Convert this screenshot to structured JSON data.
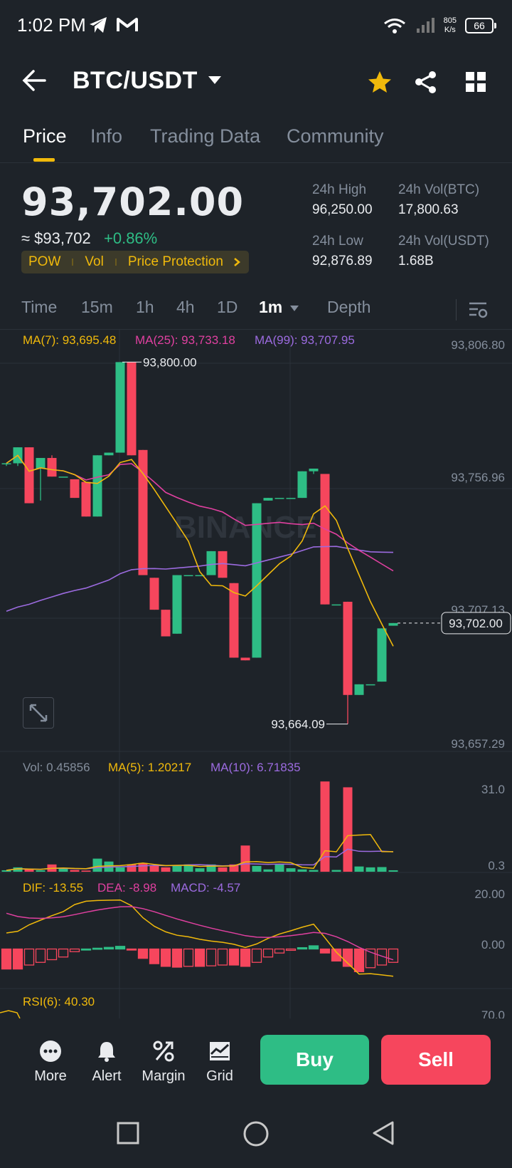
{
  "status": {
    "time": "1:02 PM",
    "net_speed_value": "805",
    "net_speed_unit": "K/s",
    "battery": "66"
  },
  "header": {
    "pair": "BTC/USDT",
    "back_icon": "arrow-left-icon",
    "dropdown_icon": "caret-down-icon",
    "favorite_icon": "star-icon",
    "share_icon": "share-icon",
    "more_icon": "grid-icon",
    "favorite_color": "#f0b90b"
  },
  "tabs": [
    {
      "label": "Price",
      "active": true
    },
    {
      "label": "Info",
      "active": false
    },
    {
      "label": "Trading Data",
      "active": false
    },
    {
      "label": "Community",
      "active": false
    }
  ],
  "ticker": {
    "last_price": "93,702.00",
    "approx_usd": "≈ $93,702",
    "change_pct": "+0.86%",
    "tags": [
      "POW",
      "Vol",
      "Price Protection"
    ],
    "high_label": "24h High",
    "high": "96,250.00",
    "low_label": "24h Low",
    "low": "92,876.89",
    "vol_btc_label": "24h Vol(BTC)",
    "vol_btc": "17,800.63",
    "vol_usdt_label": "24h Vol(USDT)",
    "vol_usdt": "1.68B"
  },
  "intervals": {
    "items": [
      "Time",
      "15m",
      "1h",
      "4h",
      "1D",
      "1m",
      "Depth"
    ],
    "active": "1m"
  },
  "colors": {
    "up": "#2ebd85",
    "down": "#f6465d",
    "ma7": "#f0b90b",
    "ma25": "#e040a0",
    "ma99": "#9c6be0",
    "bg": "#1e2329"
  },
  "chart_data": [
    {
      "type": "candlestick",
      "title": "",
      "indicators": {
        "ma7": "MA(7): 93,695.48",
        "ma25": "MA(25): 93,733.18",
        "ma99": "MA(99): 93,707.95"
      },
      "y_ticks": [
        "93,806.80",
        "93,756.96",
        "93,707.13",
        "93,657.29"
      ],
      "ylim": [
        93657.29,
        93806.8
      ],
      "current_price_label": "93,702.00",
      "high_marker": "93,800.00",
      "low_marker": "93,664.09",
      "watermark": "BINANCE",
      "candles": [
        {
          "o": 93762,
          "h": 93762,
          "l": 93761,
          "c": 93762
        },
        {
          "o": 93762,
          "h": 93768,
          "l": 93761,
          "c": 93768
        },
        {
          "o": 93768,
          "h": 93768,
          "l": 93747,
          "c": 93747
        },
        {
          "o": 93760,
          "h": 93764,
          "l": 93748,
          "c": 93764
        },
        {
          "o": 93764,
          "h": 93765,
          "l": 93757,
          "c": 93757
        },
        {
          "o": 93757,
          "h": 93757,
          "l": 93757,
          "c": 93757
        },
        {
          "o": 93756,
          "h": 93756,
          "l": 93749,
          "c": 93749
        },
        {
          "o": 93755,
          "h": 93755,
          "l": 93742,
          "c": 93742
        },
        {
          "o": 93742,
          "h": 93765,
          "l": 93742,
          "c": 93765
        },
        {
          "o": 93765,
          "h": 93766,
          "l": 93765,
          "c": 93766
        },
        {
          "o": 93766,
          "h": 93800,
          "l": 93766,
          "c": 93800
        },
        {
          "o": 93800,
          "h": 93800,
          "l": 93765,
          "c": 93765
        },
        {
          "o": 93767,
          "h": 93767,
          "l": 93720,
          "c": 93720
        },
        {
          "o": 93719,
          "h": 93719,
          "l": 93707,
          "c": 93707
        },
        {
          "o": 93707,
          "h": 93707,
          "l": 93697,
          "c": 93697
        },
        {
          "o": 93698,
          "h": 93720,
          "l": 93698,
          "c": 93720
        },
        {
          "o": 93720,
          "h": 93720,
          "l": 93720,
          "c": 93720
        },
        {
          "o": 93720,
          "h": 93720,
          "l": 93720,
          "c": 93720
        },
        {
          "o": 93720,
          "h": 93729,
          "l": 93720,
          "c": 93729
        },
        {
          "o": 93729,
          "h": 93729,
          "l": 93719,
          "c": 93719
        },
        {
          "o": 93717,
          "h": 93717,
          "l": 93689,
          "c": 93689
        },
        {
          "o": 93689,
          "h": 93689,
          "l": 93688,
          "c": 93688
        },
        {
          "o": 93689,
          "h": 93747,
          "l": 93689,
          "c": 93747
        },
        {
          "o": 93748,
          "h": 93749,
          "l": 93748,
          "c": 93749
        },
        {
          "o": 93749,
          "h": 93749,
          "l": 93749,
          "c": 93749
        },
        {
          "o": 93749,
          "h": 93749,
          "l": 93749,
          "c": 93749
        },
        {
          "o": 93749,
          "h": 93759,
          "l": 93749,
          "c": 93759
        },
        {
          "o": 93759,
          "h": 93760,
          "l": 93758,
          "c": 93760
        },
        {
          "o": 93758,
          "h": 93758,
          "l": 93709,
          "c": 93709
        },
        {
          "o": 93709,
          "h": 93709,
          "l": 93709,
          "c": 93709
        },
        {
          "o": 93710,
          "h": 93710,
          "l": 93664.09,
          "c": 93675
        },
        {
          "o": 93675,
          "h": 93679,
          "l": 93675,
          "c": 93679
        },
        {
          "o": 93679,
          "h": 93679,
          "l": 93679,
          "c": 93679
        },
        {
          "o": 93680,
          "h": 93700,
          "l": 93680,
          "c": 93700
        },
        {
          "o": 93701,
          "h": 93702,
          "l": 93701,
          "c": 93702
        }
      ]
    },
    {
      "type": "bar",
      "title": "",
      "indicators": {
        "vol": "Vol: 0.45856",
        "ma5": "MA(5): 1.20217",
        "ma10": "MA(10): 6.71835"
      },
      "y_ticks": [
        "31.0",
        "0.3"
      ],
      "ylim": [
        0,
        34
      ],
      "values": [
        0.5,
        1.5,
        0.8,
        0.5,
        2.5,
        1.2,
        0.6,
        0.4,
        4.5,
        3.5,
        1.5,
        2.5,
        3,
        2,
        1.5,
        2,
        2.5,
        1.2,
        2.5,
        1.5,
        2.5,
        9,
        2,
        0.8,
        2.5,
        1.2,
        0.8,
        0.6,
        31,
        0.6,
        29,
        1.8,
        1.5,
        1.6,
        0.5
      ]
    },
    {
      "type": "bar",
      "title": "",
      "indicators": {
        "dif": "DIF: -13.55",
        "dea": "DEA: -8.98",
        "macd": "MACD: -4.57"
      },
      "y_ticks": [
        "20.00",
        "0.00"
      ],
      "ylim": [
        -14,
        22
      ],
      "values": [
        -7.5,
        -7.5,
        -6,
        -5,
        -4,
        -3,
        -1,
        0,
        0.3,
        0.6,
        1.0,
        -0.3,
        -3.5,
        -5.5,
        -6.5,
        -6.8,
        -6.5,
        -6.5,
        -6.3,
        -6,
        -6,
        -6.5,
        -5,
        -3,
        -1.5,
        -0.5,
        0.5,
        1.2,
        -1.5,
        -4.5,
        -6.5,
        -8.5,
        -7,
        -6,
        -5
      ]
    },
    {
      "type": "line",
      "title": "",
      "indicators": {
        "rsi": "RSI(6): 40.30"
      },
      "y_ticks": [
        "70.0"
      ]
    }
  ],
  "actions": [
    {
      "label": "More",
      "icon": "more-dots-icon"
    },
    {
      "label": "Alert",
      "icon": "bell-icon"
    },
    {
      "label": "Margin",
      "icon": "margin-percent-icon"
    },
    {
      "label": "Grid",
      "icon": "grid-chart-icon"
    }
  ],
  "buy_label": "Buy",
  "sell_label": "Sell"
}
